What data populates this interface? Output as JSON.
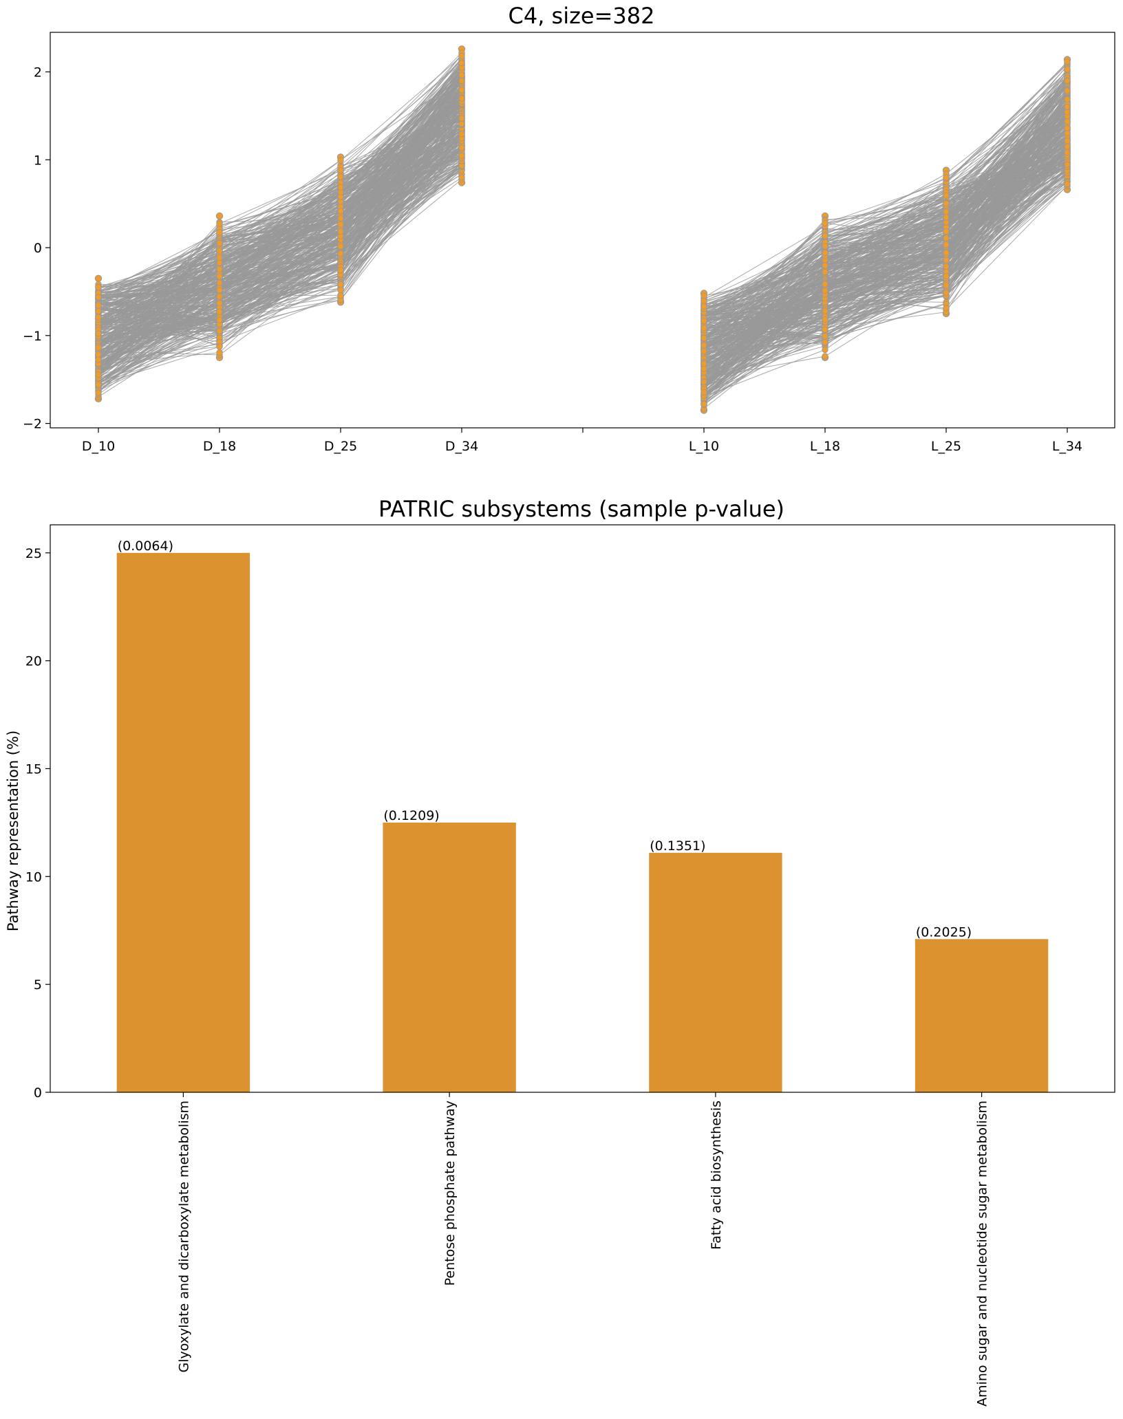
{
  "chart_data": [
    {
      "type": "line",
      "title": "C4, size=382",
      "xlabel": "",
      "ylabel": "",
      "ylim": [
        -2.05,
        2.45
      ],
      "y_ticks": [
        -2,
        -1,
        0,
        1,
        2
      ],
      "categories": [
        "D_10",
        "D_18",
        "D_25",
        "D_34",
        "",
        "L_10",
        "L_18",
        "L_25",
        "L_34"
      ],
      "groups": [
        {
          "name": "D",
          "categories": [
            "D_10",
            "D_18",
            "D_25",
            "D_34"
          ],
          "value_ranges": [
            [
              -1.72,
              -0.35
            ],
            [
              -1.25,
              0.36
            ],
            [
              -0.62,
              1.03
            ],
            [
              0.74,
              2.26
            ]
          ]
        },
        {
          "name": "L",
          "categories": [
            "L_10",
            "L_18",
            "L_25",
            "L_34"
          ],
          "value_ranges": [
            [
              -1.85,
              -0.52
            ],
            [
              -1.25,
              0.36
            ],
            [
              -0.75,
              0.88
            ],
            [
              0.66,
              2.14
            ]
          ]
        }
      ],
      "n_profiles": 382,
      "line_color": "#999999",
      "marker_color": "#f39c25",
      "marker_edge_color": "#999999"
    },
    {
      "type": "bar",
      "title": "PATRIC subsystems (sample p-value)",
      "xlabel": "",
      "ylabel": "Pathway representation (%)",
      "ylim": [
        0,
        26.3
      ],
      "y_ticks": [
        0,
        5,
        10,
        15,
        20,
        25
      ],
      "categories": [
        "Glyoxylate and dicarboxylate metabolism",
        "Pentose phosphate pathway",
        "Fatty acid biosynthesis",
        "Amino sugar and nucleotide sugar metabolism"
      ],
      "values": [
        25.0,
        12.5,
        11.1,
        7.1
      ],
      "annotations": [
        "(0.0064)",
        "(0.1209)",
        "(0.1351)",
        "(0.2025)"
      ],
      "bar_color": "#dc922e"
    }
  ]
}
